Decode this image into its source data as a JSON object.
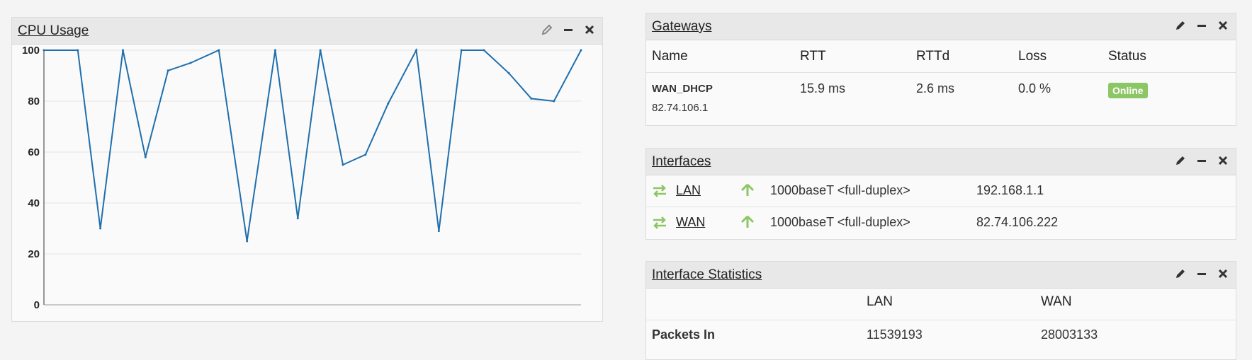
{
  "cpu": {
    "title": "CPU Usage",
    "chart_data": {
      "type": "line",
      "ylim": [
        0,
        100
      ],
      "y_ticks": [
        "0",
        "20",
        "40",
        "60",
        "80",
        "100"
      ],
      "values": [
        100,
        100,
        30,
        100,
        58,
        92,
        95,
        100,
        25,
        100,
        34,
        100,
        55,
        59,
        79,
        100,
        29,
        100,
        100,
        91,
        81,
        80,
        100
      ],
      "x": [
        0,
        1.5,
        2.5,
        3.5,
        4.5,
        5.5,
        6.5,
        7.75,
        9,
        10.25,
        11.25,
        12.25,
        13.25,
        14.25,
        15.25,
        16.5,
        17.5,
        18.5,
        19.5,
        20.6,
        21.6,
        22.6,
        23.8
      ],
      "xlim": [
        0,
        23.8
      ],
      "line_color": "#1f6fad"
    }
  },
  "gateways": {
    "title": "Gateways",
    "headers": [
      "Name",
      "RTT",
      "RTTd",
      "Loss",
      "Status"
    ],
    "rows": [
      {
        "name": "WAN_DHCP",
        "ip": "82.74.106.1",
        "rtt": "15.9 ms",
        "rttd": "2.6 ms",
        "loss": "0.0 %",
        "status": "Online"
      }
    ],
    "status_color": "#8cc665"
  },
  "interfaces": {
    "title": "Interfaces",
    "rows": [
      {
        "name": "LAN",
        "media": "1000baseT <full-duplex>",
        "ip": "192.168.1.1"
      },
      {
        "name": "WAN",
        "media": "1000baseT <full-duplex>",
        "ip": "82.74.106.222"
      }
    ],
    "icon_color": "#8cc665"
  },
  "interface_statistics": {
    "title": "Interface Statistics",
    "columns": [
      "",
      "LAN",
      "WAN"
    ],
    "rows": [
      {
        "label": "Packets In",
        "lan": "11539193",
        "wan": "28003133"
      }
    ]
  },
  "icons": {
    "edit": "pencil-icon",
    "minimize": "minus-icon",
    "close": "close-icon"
  }
}
